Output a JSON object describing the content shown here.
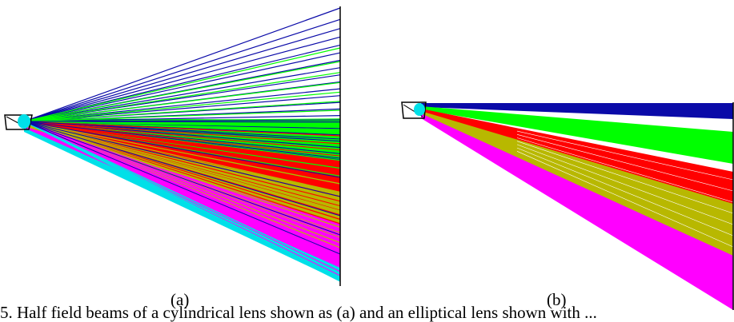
{
  "figure": {
    "panel_a_label": "(a)",
    "panel_b_label": "(b)",
    "caption_partial": "5. Half field beams of a cylindrical lens shown as (a) and an elliptical lens shown with ..."
  },
  "colors": {
    "blue": "#0a0aa8",
    "green": "#00ff00",
    "red": "#ff0000",
    "olive": "#b8b800",
    "magenta": "#ff00ff",
    "cyan": "#00e0e8",
    "black": "#000000"
  }
}
